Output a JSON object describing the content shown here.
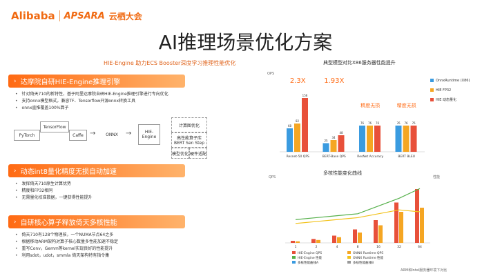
{
  "header": {
    "brand": "Alibaba",
    "apsara": "APSARA",
    "event": "云栖大会",
    "title": "AI推理场景优化方案",
    "subtitle": "HIE-Engine 助力ECS Booster深度学习推理性能优化"
  },
  "sections": [
    {
      "title": "达摩院自研HIE-Engine推理引擎",
      "bullets": [
        "针对倚天710的新特性，基于阿里达摩院自研HIE-Engine推理引擎进行专向优化",
        "支持onnx模型格式，兼容TF、Tensorflow开源onnx转换工具",
        "onnx直推覆盖100%算子"
      ]
    },
    {
      "title": "动态int8量化精度无损自动加速",
      "bullets": [
        "发挥倚天710原生计算优势",
        "精度和FP32相同",
        "无需量化校准数据，一键获得性能提升"
      ]
    },
    {
      "title": "自研核心算子释放倚天多核性能",
      "bullets": [
        "倚天710有128个物理核，一个NUMA节点64之多",
        "根据移动ARM架构对算子核心数量多性能加速不稳定",
        "重写Conv，Gemm等kernel实现良好的性能提升",
        "利用sdot，udot，smmla 倚天架构特有指令集"
      ]
    }
  ],
  "flow": {
    "frameworks": [
      "PyTorch",
      "TensorFlow",
      "Caffe"
    ],
    "onnx_label": "ONNX",
    "engine_label": "HIE-Engine",
    "engine_parts": [
      "计算图优化",
      "高性能算子库 BERT Sen Step",
      "模型优化",
      "硬件适配"
    ]
  },
  "colors": {
    "accent": "#ff6a13",
    "blue": "#3a9be0",
    "orange": "#f5a623",
    "red": "#e8503a",
    "green": "#55b04a",
    "yellow": "#f2c21b"
  },
  "chart_data": [
    {
      "type": "bar",
      "title": "典型模型对比X86服务器性能提升",
      "ylabel": "QPS",
      "categories": [
        "Resnet-50 QPS",
        "BERT-Base QPS",
        "ResNet Accuracy",
        "BERT BLEU"
      ],
      "series": [
        {
          "name": "OnnxRuntime (X86)",
          "values": [
            68,
            25,
            76,
            76
          ]
        },
        {
          "name": "HIE FP32",
          "values": [
            82,
            34,
            76,
            76
          ]
        },
        {
          "name": "HIE 动态量化",
          "values": [
            156,
            48,
            76,
            76
          ]
        }
      ],
      "data_labels": [
        [
          "68",
          "82",
          "156"
        ],
        [
          "25",
          "34",
          "48"
        ],
        [
          "76",
          "76",
          "76"
        ],
        [
          "76",
          "76",
          "76"
        ]
      ],
      "annotations": [
        "2.3X",
        "1.93X",
        "精度无损",
        "精度无损"
      ],
      "ylim": [
        0,
        220
      ]
    },
    {
      "type": "line",
      "title": "多核性能变化曲线",
      "ylabel": "QPS",
      "y2label": "性能",
      "x": [
        "1",
        "2",
        "4",
        "8",
        "16",
        "32",
        "64"
      ],
      "series": [
        {
          "name": "HIE-Engine QPS",
          "values": [
            20,
            38,
            70,
            130,
            220,
            390,
            520
          ],
          "kind": "bar"
        },
        {
          "name": "ONNX Runtime QPS",
          "values": [
            15,
            28,
            55,
            100,
            170,
            300,
            340
          ],
          "kind": "bar"
        },
        {
          "name": "HIE-Engine 性能",
          "values": [
            1.2,
            1.3,
            1.4,
            1.5,
            1.9,
            2.3,
            2.8
          ],
          "kind": "line"
        },
        {
          "name": "ONNX Runtime 性能",
          "values": [
            1.0,
            1.1,
            1.2,
            1.3,
            1.5,
            1.7,
            1.6
          ],
          "kind": "line"
        }
      ],
      "legend": [
        "HIE-Engine QPS",
        "ONNX Runtime QPS",
        "HIE-Engine 性能",
        "ONNX Runtime 性能",
        "多核性能曲线A",
        "多核性能曲线B"
      ]
    }
  ],
  "footnote": "ARM和Intel服务器环境下对比"
}
